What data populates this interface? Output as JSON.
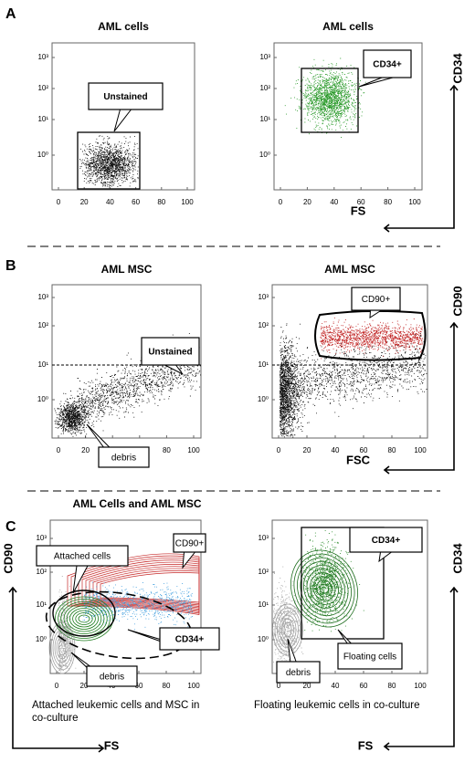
{
  "panels": [
    "A",
    "B",
    "C"
  ],
  "panel_c_title": "AML  Cells and AML MSC",
  "plots": [
    {
      "title": "AML cells",
      "yticks": [
        "10³",
        "10²",
        "10¹",
        "10⁰"
      ],
      "xticks": [
        0,
        20,
        40,
        60,
        80,
        100
      ],
      "gates": [
        "Unstained"
      ]
    },
    {
      "title": "AML cells",
      "yticks": [
        "10³",
        "10²",
        "10¹",
        "10⁰"
      ],
      "xticks": [
        0,
        20,
        40,
        60,
        80,
        100
      ],
      "gates": [
        "CD34+"
      ]
    },
    {
      "title": "AML MSC",
      "yticks": [
        "10³",
        "10²",
        "10¹",
        "10⁰"
      ],
      "xticks": [
        0,
        20,
        40,
        60,
        80,
        100
      ],
      "gates": [
        "Unstained",
        "debris"
      ]
    },
    {
      "title": "AML MSC",
      "yticks": [
        "10³",
        "10²",
        "10¹",
        "10⁰"
      ],
      "xticks": [
        0,
        20,
        40,
        60,
        80,
        100
      ],
      "gates": [
        "CD90+"
      ]
    },
    {
      "yticks": [
        "10³",
        "10²",
        "10¹",
        "10⁰"
      ],
      "xticks": [
        0,
        20,
        40,
        60,
        80,
        100
      ],
      "gates": [
        "Attached cells",
        "CD90+",
        "CD34+",
        "debris"
      ],
      "caption": "Attached leukemic cells and MSC in co-culture"
    },
    {
      "yticks": [
        "10³",
        "10²",
        "10¹",
        "10⁰"
      ],
      "xticks": [
        0,
        20,
        40,
        60,
        80,
        100
      ],
      "gates": [
        "CD34+",
        "debris",
        "Floating cells"
      ],
      "caption": "Floating leukemic cells in co-culture"
    }
  ],
  "axis_labels": {
    "a_y": "CD34",
    "a_x": "FS",
    "b_y": "CD90",
    "b_x": "FSC",
    "c_left_y": "CD90",
    "c_left_x": "FS",
    "c_right_y": "CD34",
    "c_right_x": "FS"
  }
}
